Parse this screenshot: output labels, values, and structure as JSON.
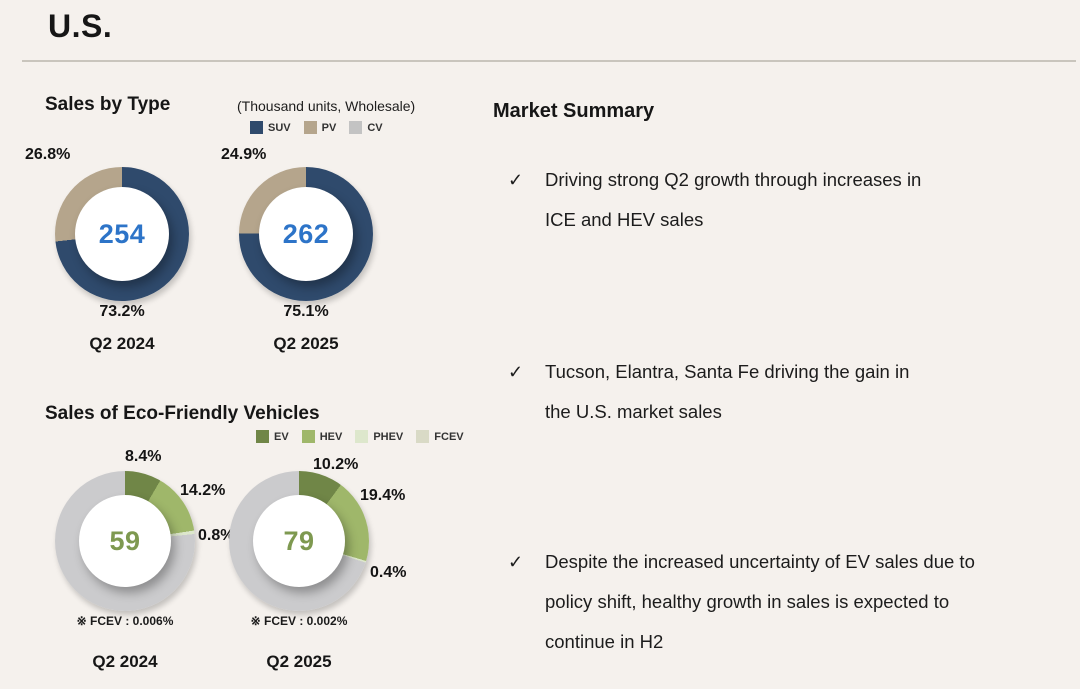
{
  "title": "U.S.",
  "summary": {
    "title": "Market Summary",
    "check_glyph": "✓",
    "items": [
      {
        "lines": [
          "Driving strong Q2 growth through increases in",
          "ICE and HEV sales"
        ]
      },
      {
        "lines": [
          "Tucson, Elantra, Santa Fe driving the gain in",
          "the U.S. market sales"
        ]
      },
      {
        "lines": [
          "Despite the increased uncertainty of EV sales due to",
          "policy shift, healthy growth in sales is expected to",
          "continue in H2"
        ]
      }
    ]
  },
  "chart_data": [
    {
      "type": "pie",
      "variant": "donut",
      "title": "Sales by Type",
      "unit_note": "(Thousand units, Wholesale)",
      "legend": [
        "SUV",
        "PV",
        "CV"
      ],
      "legend_colors": [
        "#2f4a6c",
        "#b5a58c",
        "#c3c3c3"
      ],
      "charts": [
        {
          "period": "Q2 2024",
          "total": 254,
          "center_color": "#2d74c8",
          "slices": [
            {
              "name": "SUV",
              "pct": 73.2,
              "color": "#2f4a6c",
              "callout_pos": "b"
            },
            {
              "name": "PV",
              "pct": 26.8,
              "color": "#b5a58c",
              "callout_pos": "tl"
            }
          ],
          "footnote": ""
        },
        {
          "period": "Q2 2025",
          "total": 262,
          "center_color": "#2d74c8",
          "slices": [
            {
              "name": "SUV",
              "pct": 75.1,
              "color": "#2f4a6c",
              "callout_pos": "b"
            },
            {
              "name": "PV",
              "pct": 24.9,
              "color": "#b5a58c",
              "callout_pos": "tl"
            }
          ],
          "footnote": ""
        }
      ]
    },
    {
      "type": "pie",
      "variant": "donut",
      "title": "Sales of Eco-Friendly Vehicles",
      "unit_note": "",
      "legend": [
        "EV",
        "HEV",
        "PHEV",
        "FCEV"
      ],
      "legend_colors": [
        "#708647",
        "#9fb76a",
        "#dde7cc",
        "#d9dac6"
      ],
      "charts": [
        {
          "period": "Q2 2024",
          "total": 59,
          "center_color": "#7e9950",
          "slices": [
            {
              "name": "EV",
              "pct": 8.4,
              "color": "#708647",
              "callout_pos": "t"
            },
            {
              "name": "HEV",
              "pct": 14.2,
              "color": "#9fb76a",
              "callout_pos": "tr"
            },
            {
              "name": "PHEV",
              "pct": 0.8,
              "color": "#dde7cc",
              "callout_pos": "r"
            },
            {
              "name": "FCEV",
              "pct": 0.006,
              "color": "#d9dac6",
              "callout_pos": "none"
            },
            {
              "name": "Other",
              "pct": 76.6,
              "color": "#cbcbcd",
              "callout_pos": "none"
            }
          ],
          "footnote": "※ FCEV : 0.006%"
        },
        {
          "period": "Q2 2025",
          "total": 79,
          "center_color": "#7e9950",
          "slices": [
            {
              "name": "EV",
              "pct": 10.2,
              "color": "#708647",
              "callout_pos": "t"
            },
            {
              "name": "HEV",
              "pct": 19.4,
              "color": "#9fb76a",
              "callout_pos": "tr"
            },
            {
              "name": "PHEV",
              "pct": 0.4,
              "color": "#dde7cc",
              "callout_pos": "r"
            },
            {
              "name": "FCEV",
              "pct": 0.002,
              "color": "#d9dac6",
              "callout_pos": "none"
            },
            {
              "name": "Other",
              "pct": 70.0,
              "color": "#cbcbcd",
              "callout_pos": "none"
            }
          ],
          "footnote": "※ FCEV : 0.002%"
        }
      ]
    }
  ]
}
